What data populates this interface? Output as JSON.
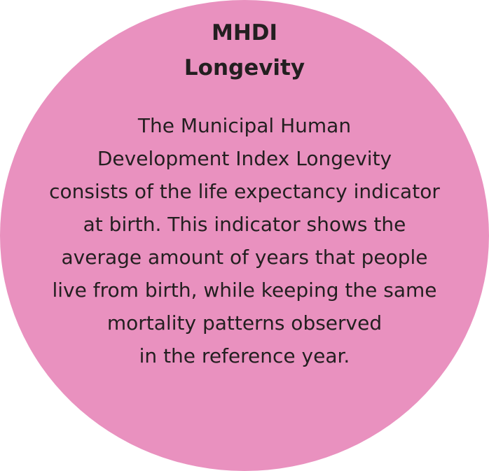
{
  "colors": {
    "circle_fill": "#e991bf",
    "text": "#231f20",
    "background": "#ffffff"
  },
  "card": {
    "title_line_1": "MHDI",
    "title_line_2": "Longevity",
    "body_lines": [
      "The Municipal Human",
      "Development Index Longevity",
      "consists of the life expectancy indicator",
      "at birth. This indicator shows the",
      "average amount of years that people",
      "live from birth, while keeping the same",
      "mortality patterns observed",
      "in the reference year."
    ]
  }
}
